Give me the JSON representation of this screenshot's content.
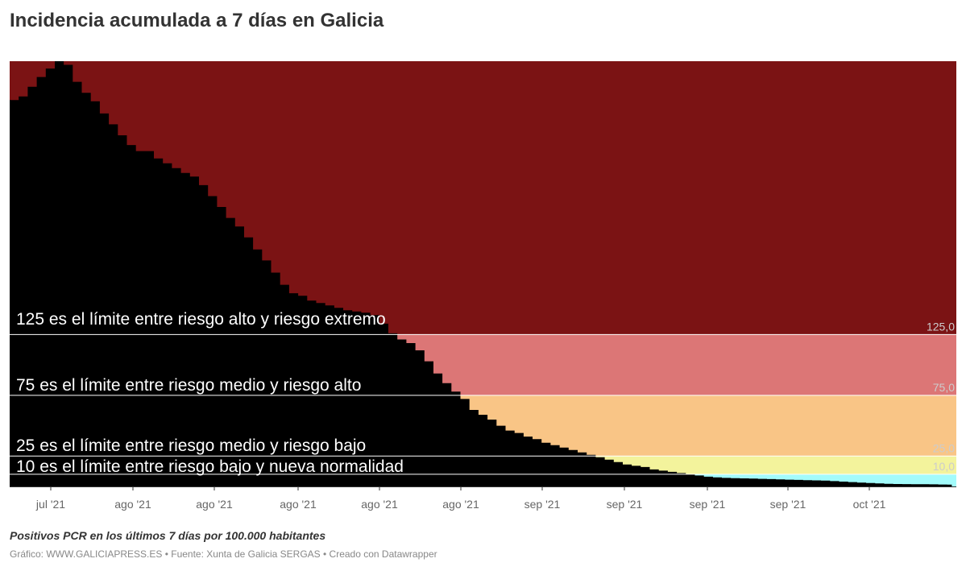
{
  "title": "Incidencia acumulada a 7 días en Galicia",
  "notes": "Positivos PCR en los últimos 7 días por 100.000 habitantes",
  "footer": "Gráfico: WWW.GALICIAPRESS.ES • Fuente: Xunta de Galicia SERGAS • Creado con Datawrapper",
  "colors": {
    "extreme": "#7b1314",
    "high": "#dc7676",
    "medium": "#f9c586",
    "low": "#f3f39c",
    "normal": "#a3fbfb",
    "incidence": "#000000"
  },
  "chart_data": {
    "type": "area",
    "title": "Incidencia acumulada a 7 días en Galicia",
    "ylim": [
      0,
      350
    ],
    "grid": false,
    "x_tick_labels": [
      "jul '21",
      "ago '21",
      "ago '21",
      "ago '21",
      "ago '21",
      "ago '21",
      "sep '21",
      "sep '21",
      "sep '21",
      "sep '21",
      "oct '21"
    ],
    "thresholds": [
      {
        "value": 125,
        "label": "125,0"
      },
      {
        "value": 75,
        "label": "75,0"
      },
      {
        "value": 25,
        "label": "25,0"
      },
      {
        "value": 10,
        "label": "10,0"
      }
    ],
    "annotations": [
      "125 es el límite entre riesgo alto y riesgo extremo",
      "75 es el límite entre riesgo medio y riesgo alto",
      "25 es el límite entre riesgo medio y riesgo bajo",
      "10 es el límite entre riesgo bajo y nueva normalidad"
    ],
    "series": [
      {
        "values": [
          318,
          321,
          329,
          337,
          344,
          350,
          347,
          333,
          324,
          317,
          307,
          298,
          289,
          281,
          276,
          276,
          270,
          266,
          262,
          258,
          255,
          248,
          239,
          230,
          221,
          214,
          205,
          195,
          186,
          176,
          166,
          159,
          157,
          153,
          151,
          149,
          147,
          145,
          144,
          143,
          141,
          134,
          126,
          121,
          118,
          112,
          103,
          93,
          85,
          78,
          72,
          63,
          59,
          55,
          50,
          46,
          44,
          41,
          39,
          36,
          34,
          32,
          30,
          28,
          26,
          24,
          22,
          20,
          18,
          17,
          16,
          14,
          13,
          12,
          11,
          10,
          9,
          8,
          7.5,
          7,
          6.8,
          6.6,
          6.4,
          6.2,
          6.0,
          5.8,
          5.6,
          5.4,
          5.2,
          5.0,
          4.8,
          4.4,
          4.0,
          3.6,
          3.2,
          2.8,
          2.5,
          2.2,
          2.0,
          1.9,
          1.8,
          1.8,
          1.7,
          1.6,
          1.5
        ]
      }
    ]
  }
}
